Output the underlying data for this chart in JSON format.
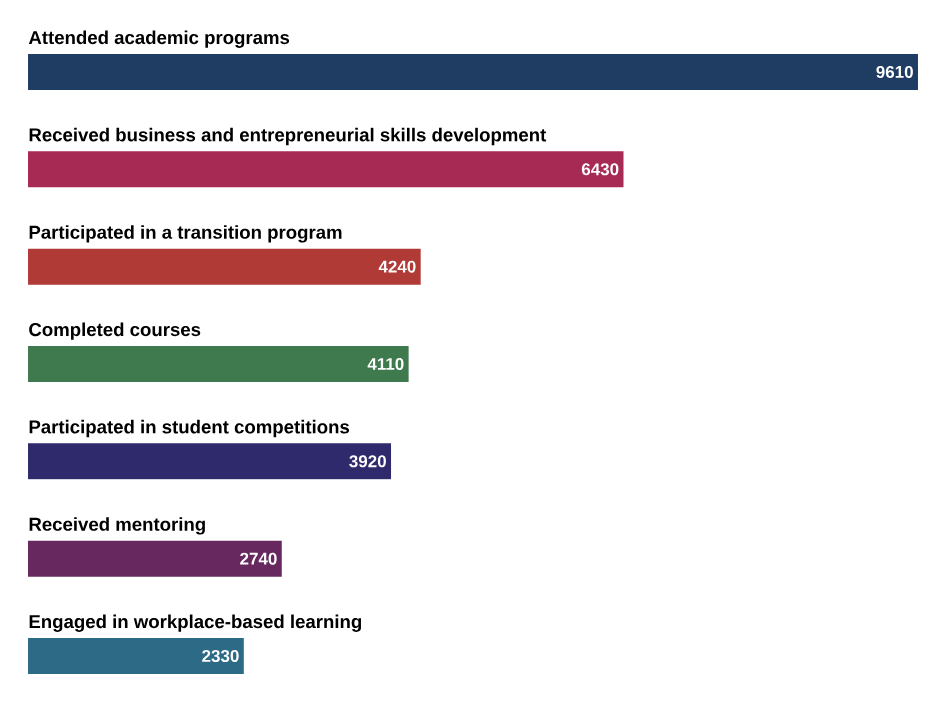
{
  "chart_data": {
    "type": "bar",
    "orientation": "horizontal",
    "categories": [
      "Attended academic programs",
      "Received business and entrepreneurial skills development",
      "Participated in a transition program",
      "Completed courses",
      "Participated in student competitions",
      "Received mentoring",
      "Engaged in workplace-based learning"
    ],
    "values": [
      9610,
      6430,
      4240,
      4110,
      3920,
      2740,
      2330
    ],
    "colors": [
      "#1f3d63",
      "#a72a55",
      "#b03a36",
      "#3f7a4f",
      "#2e2a6c",
      "#66285e",
      "#2c6a86"
    ],
    "data_labels": true
  }
}
